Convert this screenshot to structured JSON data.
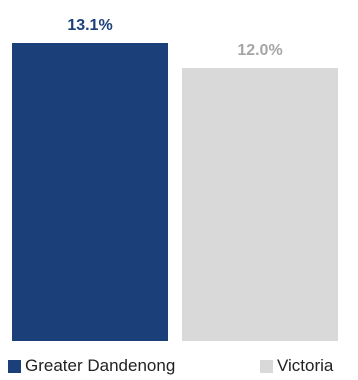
{
  "chart_data": {
    "type": "bar",
    "categories": [
      "Greater Dandenong",
      "Victoria"
    ],
    "values": [
      13.1,
      12.0
    ],
    "value_labels": [
      "13.1%",
      "12.0%"
    ],
    "ylim": [
      0,
      13.1
    ],
    "grid": false,
    "legend_position": "bottom",
    "series_colors": [
      "#1b4079",
      "#d9d9d9"
    ],
    "label_colors": [
      "#1b4079",
      "#a6a6a6"
    ]
  },
  "legend": {
    "items": [
      {
        "label": "Greater Dandenong",
        "color": "#1b4079"
      },
      {
        "label": "Victoria",
        "color": "#d9d9d9"
      }
    ]
  }
}
